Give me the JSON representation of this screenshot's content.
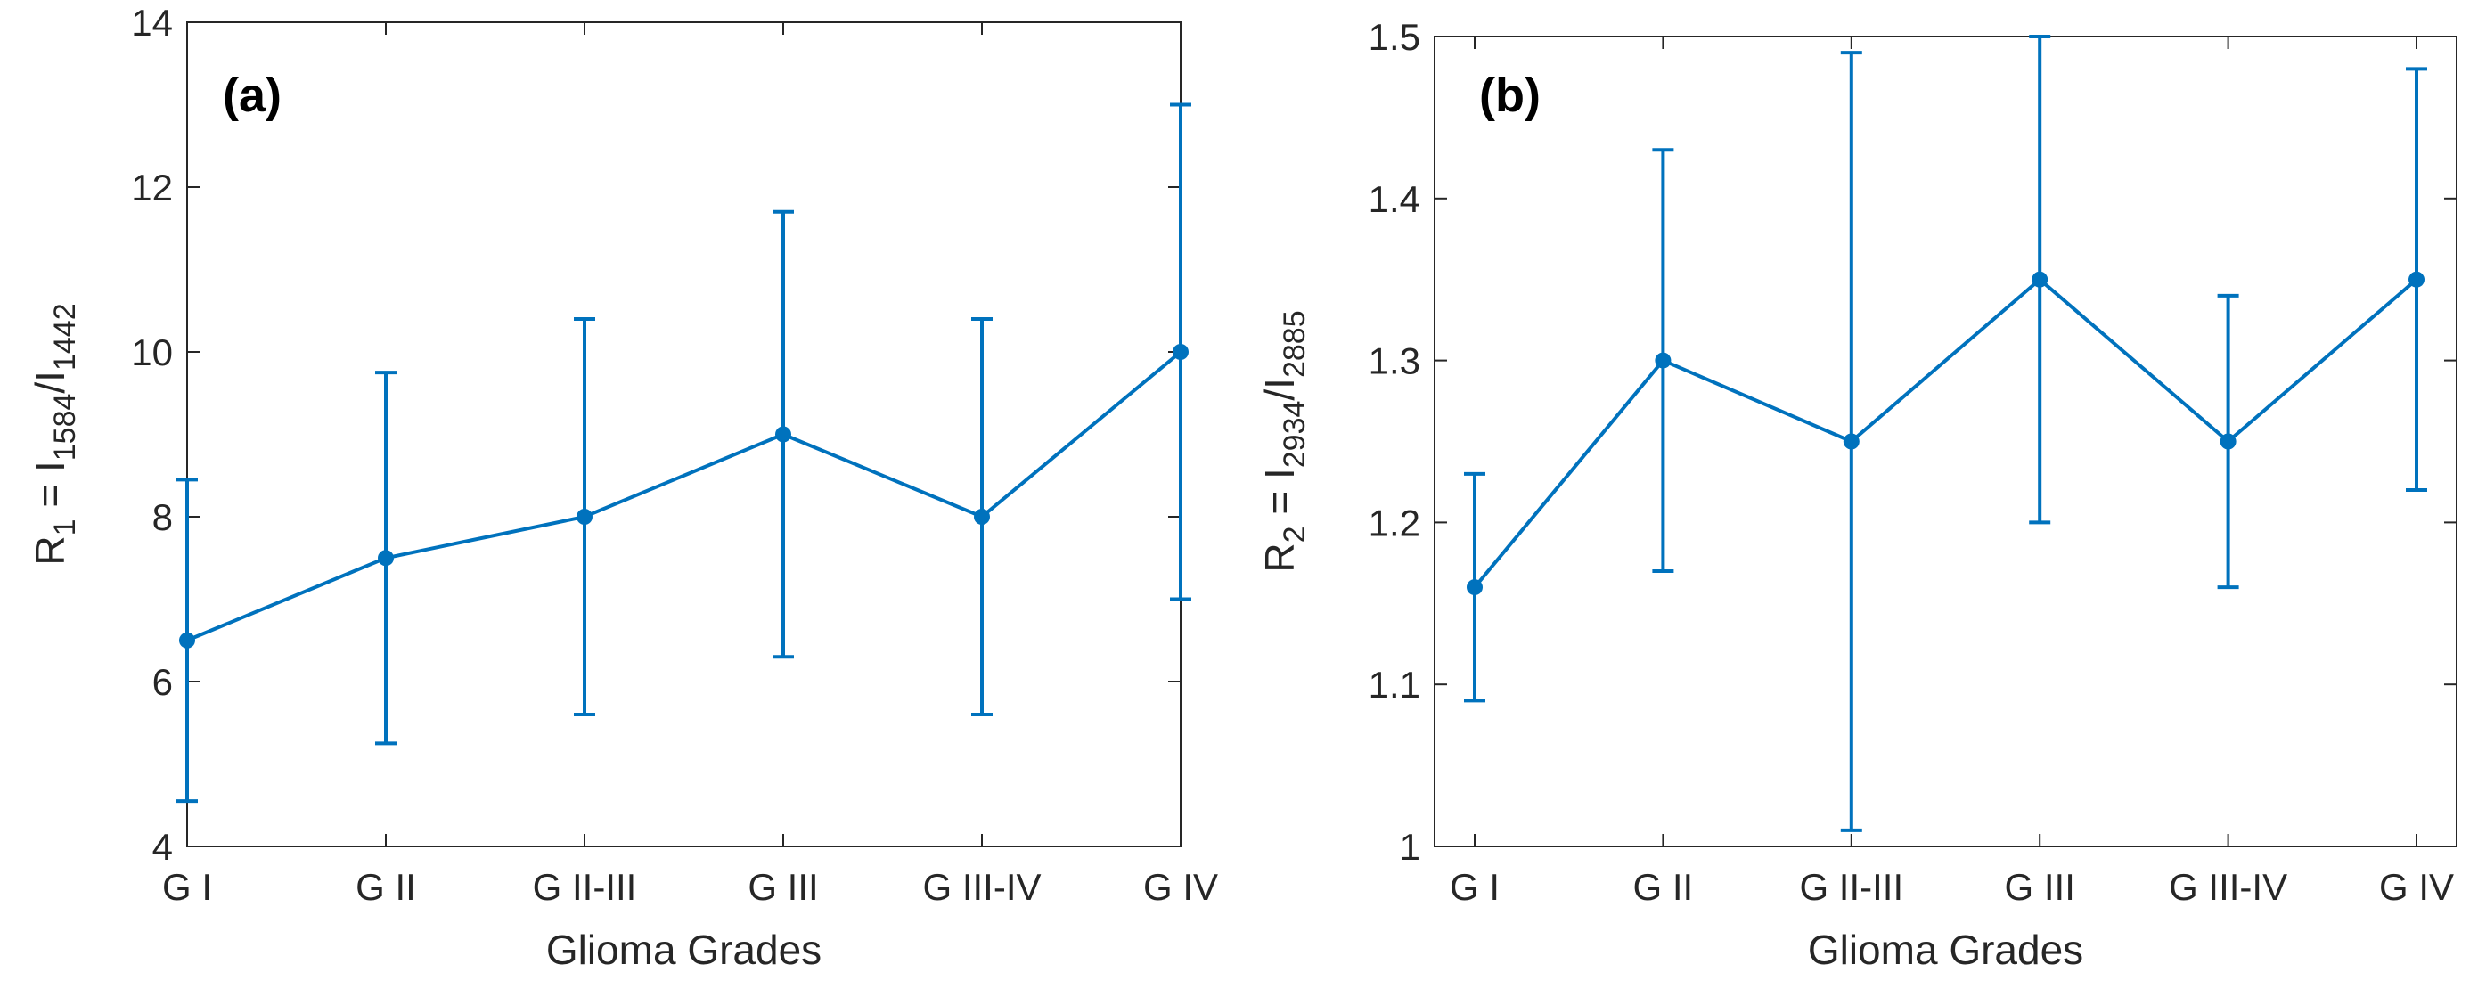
{
  "colors": {
    "series": "#0072BD",
    "axis": "#262626"
  },
  "chart_data": [
    {
      "type": "line",
      "panel_label": "(a)",
      "categories": [
        "G I",
        "G II",
        "G II-III",
        "G III",
        "G III-IV",
        "G IV"
      ],
      "values": [
        6.5,
        7.5,
        8.0,
        9.0,
        8.0,
        10.0
      ],
      "error_low": [
        4.55,
        5.25,
        5.6,
        6.3,
        5.6,
        7.0
      ],
      "error_high": [
        8.45,
        9.75,
        10.4,
        11.7,
        10.4,
        13.0
      ],
      "xlabel": "Glioma Grades",
      "ylabel": {
        "prefix": "R",
        "prefix_sub": "1",
        "mid": " = I",
        "sub_a": "1584",
        "slash": "/I",
        "sub_b": "1442"
      },
      "ylim": [
        4,
        14
      ],
      "yticks": [
        4,
        6,
        8,
        10,
        12,
        14
      ],
      "ytick_labels": [
        "4",
        "6",
        "8",
        "10",
        "12",
        "14"
      ]
    },
    {
      "type": "line",
      "panel_label": "(b)",
      "categories": [
        "G I",
        "G II",
        "G II-III",
        "G III",
        "G III-IV",
        "G IV"
      ],
      "values": [
        1.16,
        1.3,
        1.25,
        1.35,
        1.25,
        1.35
      ],
      "error_low": [
        1.09,
        1.17,
        1.01,
        1.2,
        1.16,
        1.22
      ],
      "error_high": [
        1.23,
        1.43,
        1.49,
        1.5,
        1.34,
        1.48
      ],
      "xlabel": "Glioma Grades",
      "ylabel": {
        "prefix": "R",
        "prefix_sub": "2",
        "mid": " = I",
        "sub_a": "2934",
        "slash": "/I",
        "sub_b": "2885"
      },
      "ylim": [
        1.0,
        1.5
      ],
      "yticks": [
        1.0,
        1.1,
        1.2,
        1.3,
        1.4,
        1.5
      ],
      "ytick_labels": [
        "1",
        "1.1",
        "1.2",
        "1.3",
        "1.4",
        "1.5"
      ]
    }
  ]
}
